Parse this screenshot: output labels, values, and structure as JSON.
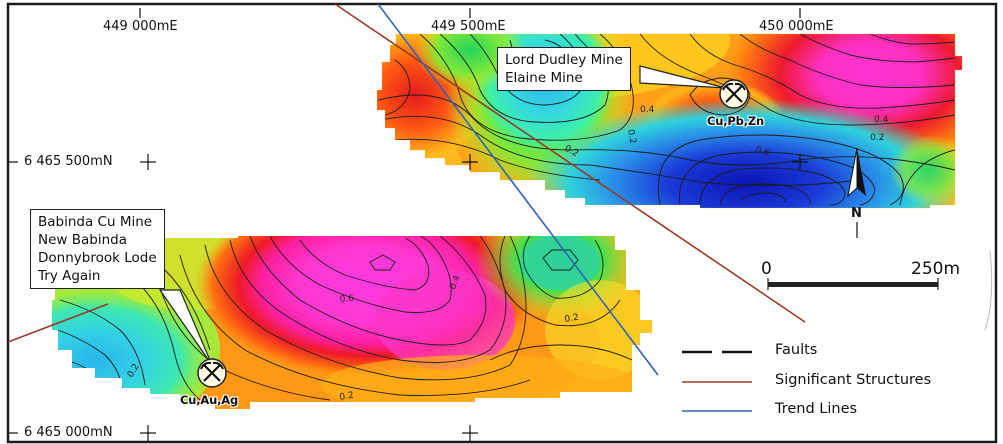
{
  "coordinates": {
    "e449000": "449 000mE",
    "e449500": "449 500mE",
    "e450000": "450 000mE",
    "n6465500": "6 465 500mN",
    "n6465000": "6 465 000mN"
  },
  "callouts": {
    "north_mines": [
      "Lord Dudley Mine",
      "Elaine Mine"
    ],
    "south_mines": [
      "Babinda Cu Mine",
      "New Babinda",
      "Donnybrook Lode",
      "Try Again"
    ]
  },
  "mineralization": {
    "north": "Cu,Pb,Zn",
    "south": "Cu,Au,Ag"
  },
  "contour_labels": {
    "north": [
      "0.2",
      "0.4",
      "0.4",
      "0.2",
      "0.2",
      "0.6"
    ],
    "south": [
      "0.6",
      "0.4",
      "0.2",
      "0.2",
      "0.2"
    ]
  },
  "scale_bar": {
    "start": "0",
    "end": "250m"
  },
  "north_arrow": {
    "label": "N"
  },
  "legend": {
    "faults": "Faults",
    "structures": "Significant Structures",
    "trend_lines": "Trend Lines"
  },
  "colors": {
    "significant_structures": "#9a3a24",
    "trend_lines": "#2f64b5",
    "faults": "#111111"
  }
}
